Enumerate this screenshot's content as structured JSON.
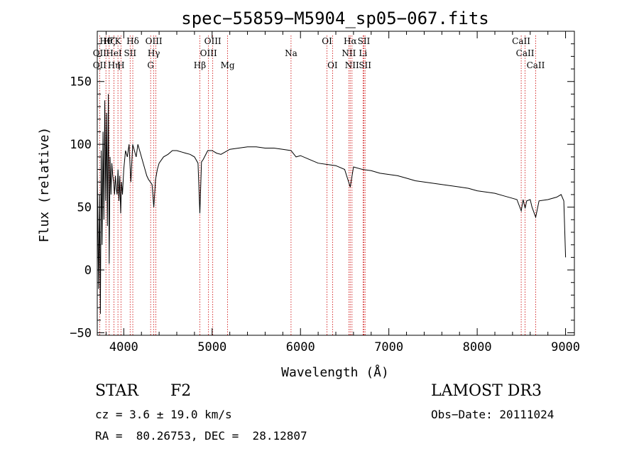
{
  "chart_data": {
    "type": "line",
    "title": "spec−55859−M5904_sp05−067.fits",
    "xlabel": "Wavelength (Å)",
    "ylabel": "Flux (relative)",
    "xlim": [
      3700,
      9100
    ],
    "ylim": [
      -52,
      190
    ],
    "x_ticks": [
      4000,
      5000,
      6000,
      7000,
      8000,
      9000
    ],
    "y_ticks": [
      -50,
      0,
      50,
      100,
      150
    ],
    "grid": false,
    "series": [
      {
        "name": "flux",
        "x": [
          3700,
          3715,
          3725,
          3735,
          3745,
          3755,
          3765,
          3775,
          3785,
          3795,
          3805,
          3815,
          3825,
          3835,
          3845,
          3855,
          3865,
          3875,
          3885,
          3895,
          3905,
          3915,
          3925,
          3935,
          3945,
          3955,
          3965,
          3975,
          3985,
          4000,
          4020,
          4040,
          4060,
          4080,
          4101,
          4120,
          4140,
          4160,
          4180,
          4200,
          4220,
          4240,
          4260,
          4280,
          4300,
          4320,
          4340,
          4360,
          4380,
          4400,
          4450,
          4500,
          4550,
          4600,
          4650,
          4700,
          4750,
          4800,
          4840,
          4861,
          4880,
          4900,
          4950,
          5000,
          5050,
          5100,
          5150,
          5200,
          5300,
          5400,
          5500,
          5600,
          5700,
          5800,
          5893,
          5950,
          6000,
          6100,
          6200,
          6300,
          6400,
          6500,
          6563,
          6600,
          6700,
          6800,
          6900,
          7000,
          7100,
          7200,
          7300,
          7400,
          7500,
          7600,
          7700,
          7800,
          7900,
          8000,
          8100,
          8200,
          8300,
          8400,
          8450,
          8498,
          8520,
          8542,
          8560,
          8600,
          8620,
          8662,
          8700,
          8800,
          8900,
          8950,
          8980,
          9000
        ],
        "y": [
          78,
          -15,
          60,
          -35,
          95,
          20,
          110,
          40,
          135,
          55,
          125,
          35,
          140,
          5,
          90,
          60,
          85,
          75,
          70,
          60,
          75,
          65,
          60,
          80,
          55,
          75,
          45,
          70,
          60,
          80,
          95,
          90,
          100,
          70,
          100,
          95,
          90,
          100,
          95,
          90,
          85,
          80,
          75,
          72,
          70,
          68,
          50,
          72,
          80,
          85,
          90,
          92,
          95,
          95,
          94,
          93,
          92,
          90,
          85,
          45,
          86,
          88,
          95,
          95,
          93,
          92,
          94,
          96,
          97,
          98,
          98,
          97,
          97,
          96,
          95,
          90,
          91,
          88,
          85,
          84,
          83,
          80,
          66,
          82,
          80,
          79,
          77,
          76,
          75,
          73,
          71,
          70,
          69,
          68,
          67,
          66,
          65,
          63,
          62,
          61,
          59,
          57,
          56,
          47,
          56,
          49,
          55,
          56,
          50,
          42,
          55,
          56,
          58,
          60,
          55,
          10
        ]
      }
    ],
    "line_markers": {
      "top_labels": [
        {
          "x": 3798,
          "row": 1,
          "text": "Hθ"
        },
        {
          "x": 3835,
          "row": 1,
          "text": "Hζ"
        },
        {
          "x": 3934,
          "row": 1,
          "text": "K"
        },
        {
          "x": 4102,
          "row": 1,
          "text": "Hδ"
        },
        {
          "x": 4340,
          "row": 1,
          "text": "OIII"
        },
        {
          "x": 5007,
          "row": 1,
          "text": "OIII"
        },
        {
          "x": 6300,
          "row": 1,
          "text": "OI"
        },
        {
          "x": 6563,
          "row": 1,
          "text": "Hα"
        },
        {
          "x": 6717,
          "row": 1,
          "text": "SII"
        },
        {
          "x": 8498,
          "row": 1,
          "text": "CaII"
        },
        {
          "x": 3727,
          "row": 2,
          "text": "OII"
        },
        {
          "x": 3889,
          "row": 2,
          "text": "HeI"
        },
        {
          "x": 4072,
          "row": 2,
          "text": "SII"
        },
        {
          "x": 4340,
          "row": 2,
          "text": "Hγ"
        },
        {
          "x": 4959,
          "row": 2,
          "text": "OIII"
        },
        {
          "x": 5893,
          "row": 2,
          "text": "Na"
        },
        {
          "x": 6548,
          "row": 2,
          "text": "NII"
        },
        {
          "x": 6708,
          "row": 2,
          "text": "Li"
        },
        {
          "x": 8542,
          "row": 2,
          "text": "CaII"
        },
        {
          "x": 3727,
          "row": 3,
          "text": "OII"
        },
        {
          "x": 3889,
          "row": 3,
          "text": "Hη"
        },
        {
          "x": 3968,
          "row": 3,
          "text": "H"
        },
        {
          "x": 4304,
          "row": 3,
          "text": "G"
        },
        {
          "x": 4861,
          "row": 3,
          "text": "Hβ"
        },
        {
          "x": 5175,
          "row": 3,
          "text": "Mg"
        },
        {
          "x": 6363,
          "row": 3,
          "text": "OI"
        },
        {
          "x": 6583,
          "row": 3,
          "text": "NII"
        },
        {
          "x": 6731,
          "row": 3,
          "text": "SII"
        },
        {
          "x": 8662,
          "row": 3,
          "text": "CaII"
        }
      ],
      "line_positions": [
        3727,
        3798,
        3835,
        3889,
        3934,
        3968,
        4072,
        4102,
        4304,
        4340,
        4363,
        4861,
        4959,
        5007,
        5175,
        5893,
        6300,
        6363,
        6548,
        6563,
        6583,
        6708,
        6717,
        6731,
        8498,
        8542,
        8662
      ]
    },
    "annotations": {
      "object_class": "STAR",
      "subclass": "F2",
      "redshift": "cz = 3.6 ± 19.0 km/s",
      "coords": "RA =  80.26753, DEC =  28.12807",
      "survey": "LAMOST DR3",
      "obs_date": "Obs−Date: 20111024"
    }
  },
  "colors": {
    "spectrum": "#000000",
    "marker_line": "#cc0000",
    "axes": "#000000",
    "background": "#ffffff"
  }
}
